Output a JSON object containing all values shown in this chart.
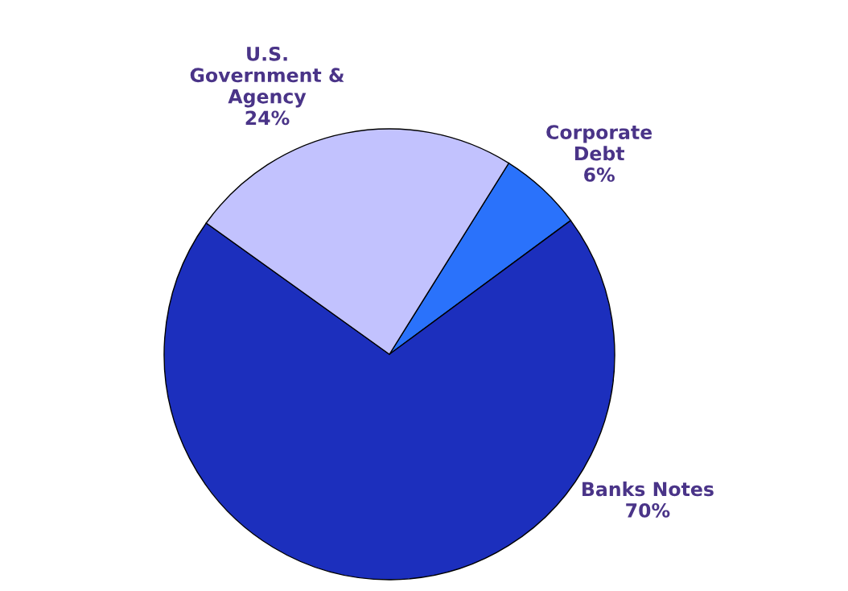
{
  "chart_data": {
    "type": "pie",
    "categories": [
      "Corporate\nDebt",
      "Banks Notes",
      "U.S.\nGovernment &\nAgency"
    ],
    "values": [
      6,
      70,
      24
    ],
    "value_labels": [
      "6%",
      "70%",
      "24%"
    ],
    "colors": [
      "#2a72fb",
      "#1c2fbd",
      "#c2c2fe"
    ]
  }
}
